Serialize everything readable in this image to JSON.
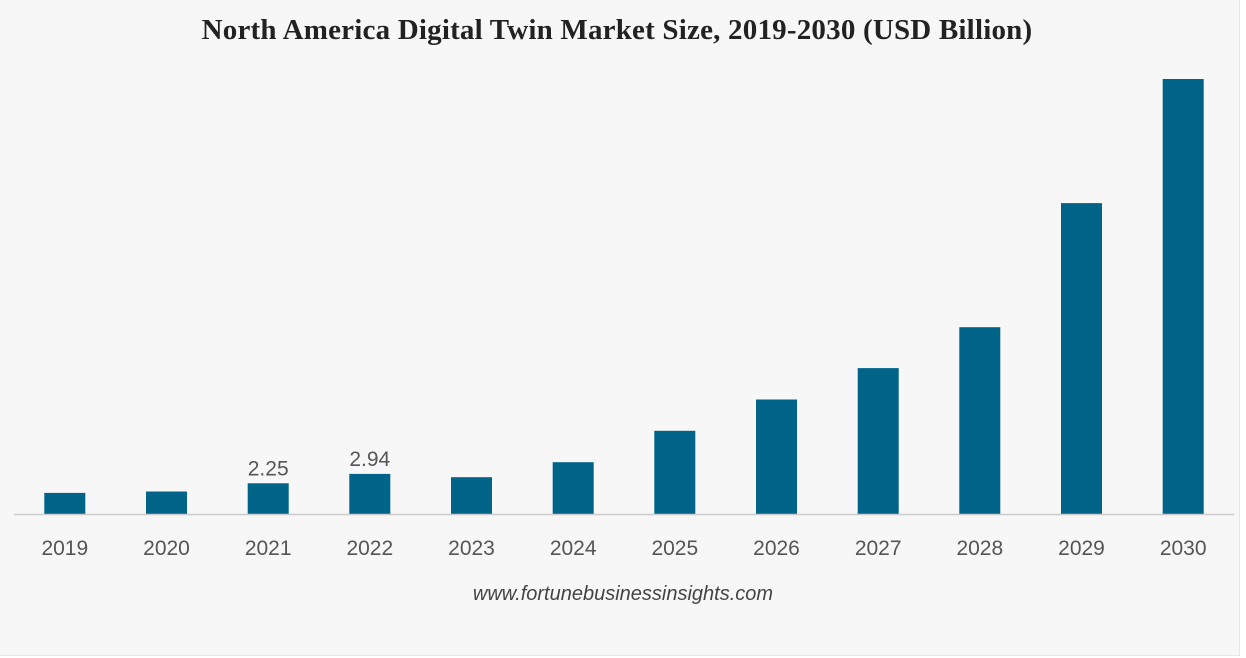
{
  "chart_data": {
    "type": "bar",
    "title": "North America Digital Twin Market Size, 2019-2030 (USD Billion)",
    "categories": [
      "2019",
      "2020",
      "2021",
      "2022",
      "2023",
      "2024",
      "2025",
      "2026",
      "2027",
      "2028",
      "2029",
      "2030"
    ],
    "series": [
      {
        "values": [
          1.55,
          1.65,
          2.25,
          2.94,
          2.7,
          3.8,
          6.1,
          8.4,
          10.7,
          13.7,
          22.8,
          31.9
        ]
      }
    ],
    "data_labels": {
      "2021": "2.25",
      "2022": "2.94"
    },
    "bar_color": "#006388",
    "ylim": [
      0,
      33
    ],
    "grid": false,
    "show_y_axis": false,
    "xlabel": "",
    "ylabel": ""
  },
  "source_text": "www.fortunebusinessinsights.com",
  "colors": {
    "background": "#f7f7f7",
    "bar": "#006388",
    "axis": "#cccccc",
    "text": "#555555"
  }
}
